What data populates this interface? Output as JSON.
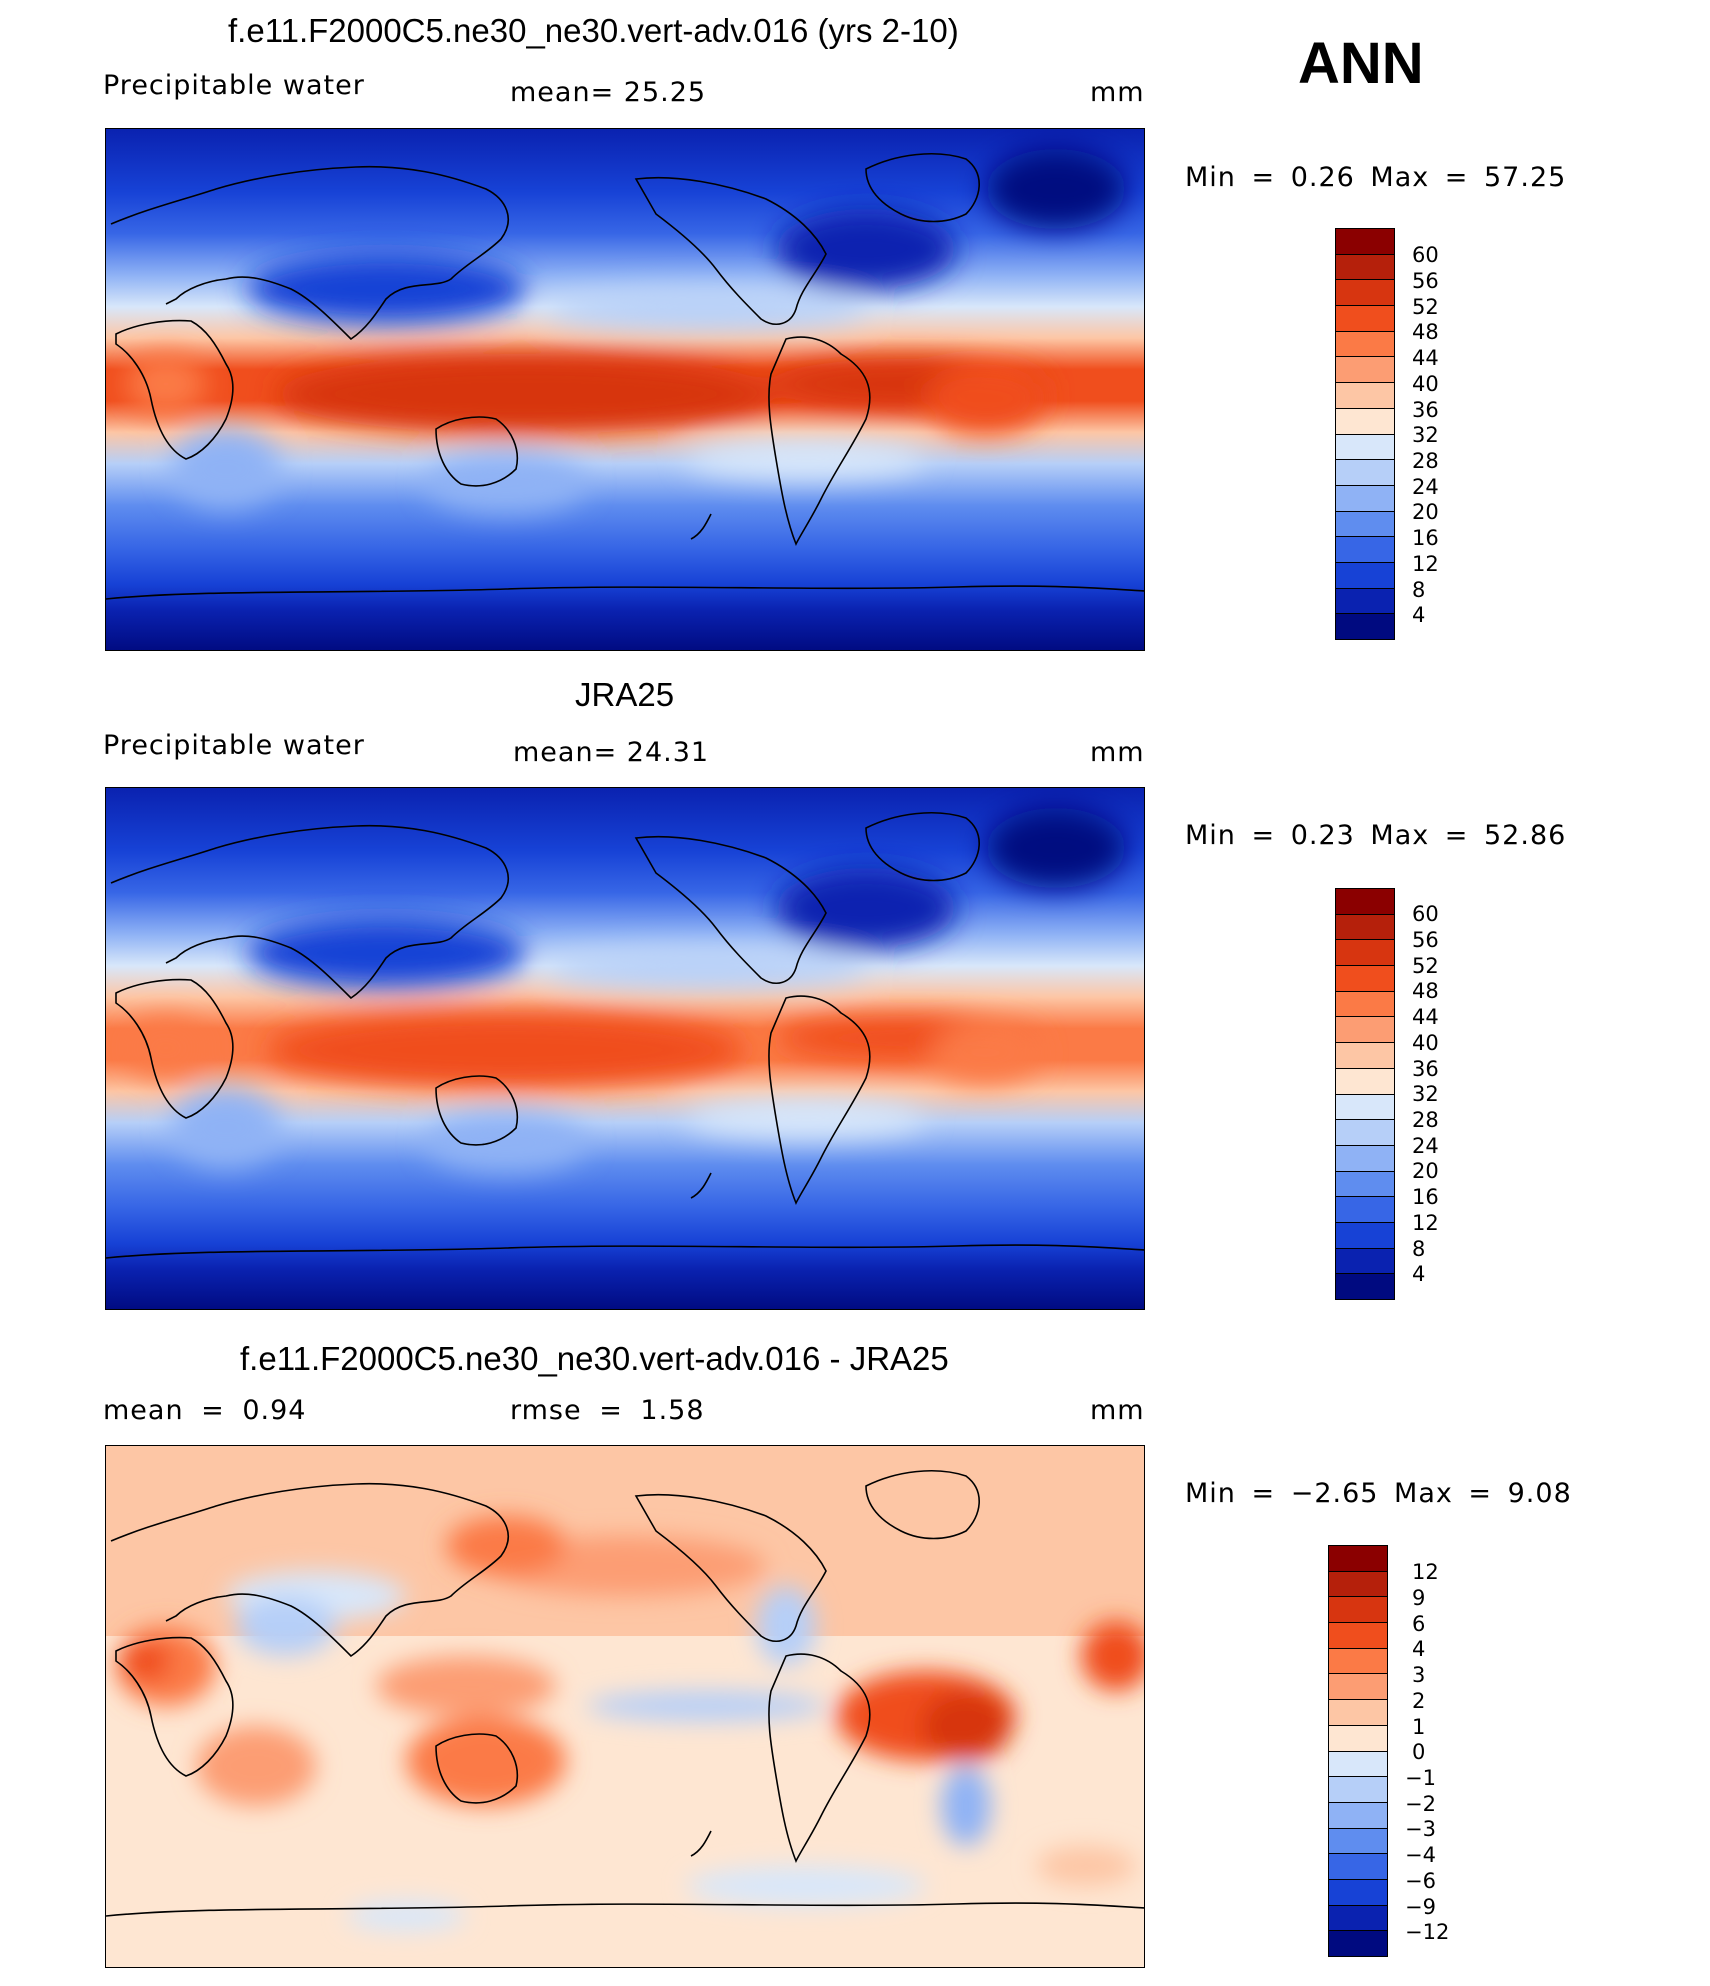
{
  "season": "ANN",
  "panels": [
    {
      "title": "f.e11.F2000C5.ne30_ne30.vert-adv.016 (yrs 2-10)",
      "left_label": "Precipitable water",
      "center_label": "mean= 25.25",
      "units": "mm",
      "minmax": "Min = 0.26 Max = 57.25",
      "colorbar": {
        "ticks": [
          "60",
          "56",
          "52",
          "48",
          "44",
          "40",
          "36",
          "32",
          "28",
          "24",
          "20",
          "16",
          "12",
          "8",
          "4"
        ],
        "colors": [
          "#8b0000",
          "#b5200b",
          "#d73510",
          "#f04e1d",
          "#fb7a46",
          "#fc9d73",
          "#fdc6a5",
          "#fee6d2",
          "#d8e7fa",
          "#b6cff8",
          "#8fb2f5",
          "#5f8def",
          "#3766e6",
          "#1742d6",
          "#0a22b0",
          "#000a80"
        ]
      }
    },
    {
      "title": "JRA25",
      "left_label": "Precipitable water",
      "center_label": "mean= 24.31",
      "units": "mm",
      "minmax": "Min = 0.23 Max = 52.86",
      "colorbar": {
        "ticks": [
          "60",
          "56",
          "52",
          "48",
          "44",
          "40",
          "36",
          "32",
          "28",
          "24",
          "20",
          "16",
          "12",
          "8",
          "4"
        ],
        "colors": [
          "#8b0000",
          "#b5200b",
          "#d73510",
          "#f04e1d",
          "#fb7a46",
          "#fc9d73",
          "#fdc6a5",
          "#fee6d2",
          "#d8e7fa",
          "#b6cff8",
          "#8fb2f5",
          "#5f8def",
          "#3766e6",
          "#1742d6",
          "#0a22b0",
          "#000a80"
        ]
      }
    },
    {
      "title": "f.e11.F2000C5.ne30_ne30.vert-adv.016 - JRA25",
      "left_label": "mean = 0.94",
      "center_label": "rmse = 1.58",
      "units": "mm",
      "minmax": "Min = −2.65 Max = 9.08",
      "colorbar": {
        "ticks": [
          "12",
          "9",
          "6",
          "4",
          "3",
          "2",
          "1",
          "0",
          "−1",
          "−2",
          "−3",
          "−4",
          "−6",
          "−9",
          "−12"
        ],
        "colors": [
          "#8b0000",
          "#b5200b",
          "#d73510",
          "#f04e1d",
          "#fb7a46",
          "#fc9d73",
          "#fdc6a5",
          "#fee6d2",
          "#d8e7fa",
          "#b6cff8",
          "#8fb2f5",
          "#5f8def",
          "#3766e6",
          "#1742d6",
          "#0a22b0",
          "#000a80"
        ]
      }
    }
  ]
}
